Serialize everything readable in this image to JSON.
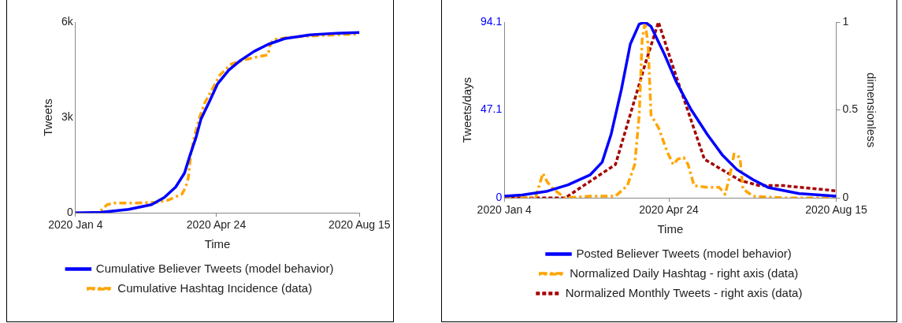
{
  "chart_data": [
    {
      "type": "line",
      "xlabel": "Time",
      "ylabel": "Tweets",
      "legend": "bottom",
      "grid": false,
      "marker": "none",
      "xlim": [
        "2020-01-04",
        "2020-08-15"
      ],
      "xticks": [
        {
          "value": "2020-01-04",
          "label": "2020 Jan 4"
        },
        {
          "value": "2020-04-24",
          "label": "2020 Apr 24"
        },
        {
          "value": "2020-08-15",
          "label": "2020 Aug 15"
        }
      ],
      "ylim": [
        0,
        6000
      ],
      "yticks": [
        0,
        {
          "value": 3000,
          "label": "3k"
        },
        {
          "value": 6000,
          "label": "6k"
        }
      ],
      "series": [
        {
          "name": "Cumulative Believer Tweets (model behavior)",
          "color": "#0000ff",
          "line_style": "solid",
          "x": [
            "2020-01-04",
            "2020-01-24",
            "2020-02-15",
            "2020-03-04",
            "2020-03-14",
            "2020-03-23",
            "2020-03-30",
            "2020-04-03",
            "2020-04-08",
            "2020-04-12",
            "2020-04-19",
            "2020-04-25",
            "2020-05-04",
            "2020-05-13",
            "2020-05-24",
            "2020-06-04",
            "2020-06-17",
            "2020-07-07",
            "2020-07-28",
            "2020-08-15"
          ],
          "values": [
            0,
            15,
            110,
            260,
            480,
            810,
            1250,
            1770,
            2360,
            2950,
            3530,
            4050,
            4490,
            4790,
            5080,
            5300,
            5480,
            5600,
            5650,
            5670
          ]
        },
        {
          "name": "Cumulative Hashtag Incidence (data)",
          "color": "#ffa500",
          "line_style": "dashed",
          "x": [
            "2020-01-04",
            "2020-01-22",
            "2020-01-29",
            "2020-02-04",
            "2020-02-19",
            "2020-03-08",
            "2020-03-17",
            "2020-03-28",
            "2020-03-31",
            "2020-04-02",
            "2020-04-04",
            "2020-04-07",
            "2020-04-11",
            "2020-04-15",
            "2020-04-21",
            "2020-04-27",
            "2020-05-06",
            "2020-05-17",
            "2020-05-26",
            "2020-06-04",
            "2020-06-05",
            "2020-06-08",
            "2020-06-21",
            "2020-07-07",
            "2020-07-28",
            "2020-08-15"
          ],
          "values": [
            0,
            0,
            260,
            310,
            310,
            330,
            400,
            590,
            810,
            1100,
            1840,
            2430,
            3020,
            3460,
            3900,
            4340,
            4680,
            4820,
            4900,
            4970,
            5230,
            5450,
            5520,
            5560,
            5600,
            5630
          ]
        }
      ]
    },
    {
      "type": "line",
      "xlabel": "Time",
      "ylabel": "Tweets/days",
      "y2label": "dimensionless",
      "legend": "bottom",
      "grid": false,
      "marker": "none",
      "xlim": [
        "2020-01-04",
        "2020-08-15"
      ],
      "xticks": [
        {
          "value": "2020-01-04",
          "label": "2020 Jan 4"
        },
        {
          "value": "2020-04-24",
          "label": "2020 Apr 24"
        },
        {
          "value": "2020-08-15",
          "label": "2020 Aug 15"
        }
      ],
      "ylim": [
        0,
        94.1
      ],
      "yticks": [
        0,
        47.1,
        94.1
      ],
      "y2lim": [
        0,
        1
      ],
      "y2ticks": [
        0,
        0.5,
        1
      ],
      "series": [
        {
          "name": "Posted Believer Tweets (model behavior)",
          "color": "#0000ff",
          "line_style": "solid",
          "x": [
            "2020-01-04",
            "2020-01-16",
            "2020-02-02",
            "2020-02-16",
            "2020-03-02",
            "2020-03-10",
            "2020-03-16",
            "2020-03-23",
            "2020-03-29",
            "2020-04-04",
            "2020-04-08",
            "2020-04-12",
            "2020-04-21",
            "2020-04-29",
            "2020-05-09",
            "2020-05-20",
            "2020-05-30",
            "2020-06-09",
            "2020-06-20",
            "2020-06-30",
            "2020-07-21",
            "2020-08-15"
          ],
          "values": [
            0.9,
            1.6,
            3.6,
            7.0,
            12.4,
            19.1,
            33.9,
            58.1,
            82.3,
            93.0,
            94.1,
            91.7,
            76.9,
            62.1,
            47.3,
            33.9,
            23.1,
            15.1,
            9.7,
            5.6,
            2.3,
            0.9
          ]
        },
        {
          "name": "Normalized Daily Hashtag - right axis (data)",
          "color": "#ffa500",
          "line_style": "dashed",
          "axis": "y2",
          "x": [
            "2020-01-04",
            "2020-01-25",
            "2020-01-30",
            "2020-02-02",
            "2020-02-06",
            "2020-02-14",
            "2020-03-02",
            "2020-03-19",
            "2020-03-27",
            "2020-04-01",
            "2020-04-04",
            "2020-04-06",
            "2020-04-08",
            "2020-04-10",
            "2020-04-12",
            "2020-04-17",
            "2020-04-23",
            "2020-04-27",
            "2020-04-30",
            "2020-05-04",
            "2020-05-07",
            "2020-05-11",
            "2020-05-20",
            "2020-05-28",
            "2020-06-01",
            "2020-06-04",
            "2020-06-07",
            "2020-06-11",
            "2020-06-13",
            "2020-06-20",
            "2020-07-10",
            "2020-08-15"
          ],
          "values": [
            0,
            0,
            0.14,
            0.09,
            0.05,
            0,
            0.01,
            0.01,
            0.07,
            0.19,
            0.47,
            0.9,
            1.0,
            0.87,
            0.47,
            0.4,
            0.26,
            0.19,
            0.22,
            0.23,
            0.19,
            0.07,
            0.06,
            0.06,
            0.02,
            0.12,
            0.25,
            0.23,
            0.05,
            0.01,
            0,
            0
          ]
        },
        {
          "name": "Normalized Monthly Tweets - right axis (data)",
          "color": "#a50000",
          "line_style": "dotted",
          "axis": "y2",
          "x": [
            "2020-01-04",
            "2020-02-14",
            "2020-03-19",
            "2020-04-08",
            "2020-04-17",
            "2020-04-29",
            "2020-05-18",
            "2020-06-11",
            "2020-06-24",
            "2020-07-10",
            "2020-08-15"
          ],
          "values": [
            0,
            0,
            0.19,
            0.76,
            1.0,
            0.69,
            0.22,
            0.1,
            0.07,
            0.07,
            0.04
          ]
        }
      ]
    }
  ]
}
